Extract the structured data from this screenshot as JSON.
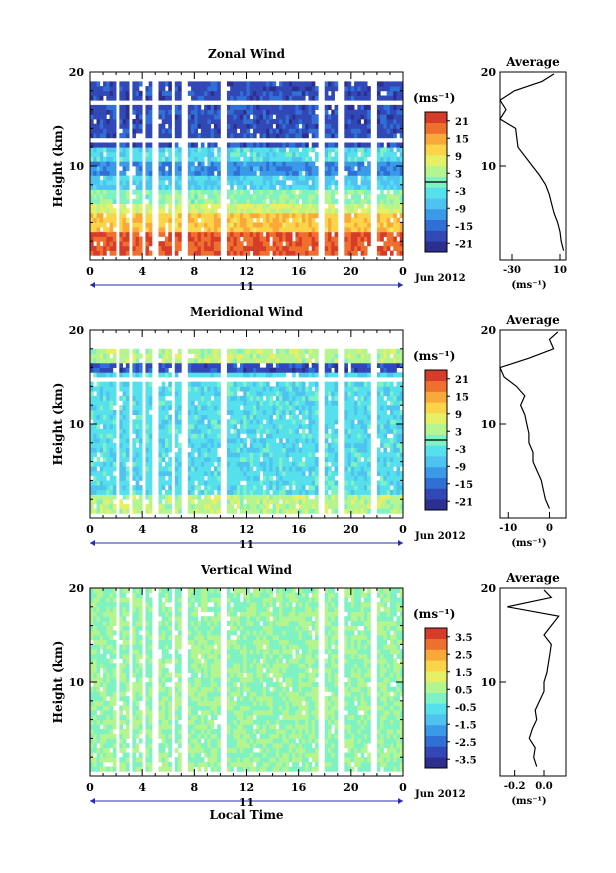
{
  "chart_data": [
    {
      "type": "heatmap",
      "title": "Zonal Wind",
      "ylabel": "Height (km)",
      "xlabel": "",
      "xlim": [
        0,
        24
      ],
      "ylim": [
        0,
        20
      ],
      "xticks": [
        "0",
        "4",
        "8",
        "12",
        "16",
        "20",
        "0"
      ],
      "yticks": [
        "10",
        "20"
      ],
      "date_day": "11",
      "date_label": "Jun 2012",
      "colorbar": {
        "unit_label": "(ms⁻¹)",
        "ticks": [
          "21",
          "15",
          "9",
          "3",
          "-3",
          "-9",
          "-15",
          "-21"
        ],
        "range": [
          -24,
          24
        ],
        "marker_value": 0
      },
      "data_gaps_hours": [
        [
          1.9,
          2.3
        ],
        [
          3.0,
          3.3
        ],
        [
          3.9,
          4.3
        ],
        [
          4.8,
          5.2
        ],
        [
          6.2,
          6.6
        ],
        [
          7.0,
          7.5
        ],
        [
          10.0,
          10.6
        ],
        [
          17.6,
          17.9
        ],
        [
          19.0,
          19.6
        ],
        [
          21.6,
          22.1
        ]
      ],
      "mean_profile": {
        "title": "Average",
        "xlabel": "(ms⁻¹)",
        "xticks": [
          "-30",
          "10"
        ],
        "xlim": [
          -40,
          15
        ],
        "yticks": [
          "10",
          "20"
        ],
        "height_km": [
          1,
          2,
          3,
          4,
          5,
          6,
          7,
          8,
          9,
          10,
          11,
          12,
          13,
          14,
          15,
          16,
          17,
          18,
          19,
          19.8
        ],
        "values": [
          13,
          11,
          10,
          8,
          5,
          3,
          1,
          -2,
          -7,
          -13,
          -19,
          -25,
          -26,
          -27,
          -40,
          -35,
          -40,
          -28,
          -5,
          5
        ]
      }
    },
    {
      "type": "heatmap",
      "title": "Meridional Wind",
      "ylabel": "Height (km)",
      "xlabel": "",
      "xlim": [
        0,
        24
      ],
      "ylim": [
        0,
        20
      ],
      "xticks": [
        "0",
        "4",
        "8",
        "12",
        "16",
        "20",
        "0"
      ],
      "yticks": [
        "10",
        "20"
      ],
      "date_day": "11",
      "date_label": "Jun 2012",
      "colorbar": {
        "unit_label": "(ms⁻¹)",
        "ticks": [
          "21",
          "15",
          "9",
          "3",
          "-3",
          "-9",
          "-15",
          "-21"
        ],
        "range": [
          -24,
          24
        ],
        "marker_value": 0
      },
      "data_gaps_hours": [
        [
          1.9,
          2.3
        ],
        [
          3.0,
          3.3
        ],
        [
          3.9,
          4.3
        ],
        [
          4.8,
          5.2
        ],
        [
          6.2,
          6.6
        ],
        [
          7.0,
          7.5
        ],
        [
          10.0,
          10.6
        ],
        [
          17.6,
          17.9
        ],
        [
          19.0,
          19.6
        ],
        [
          21.6,
          22.1
        ]
      ],
      "mean_profile": {
        "title": "Average",
        "xlabel": "(ms⁻¹)",
        "xticks": [
          "-10",
          "0"
        ],
        "xlim": [
          -12,
          4
        ],
        "yticks": [
          "10",
          "20"
        ],
        "height_km": [
          1,
          2,
          3,
          4,
          5,
          6,
          7,
          8,
          9,
          10,
          11,
          12,
          13,
          14,
          15,
          16,
          17,
          18,
          19,
          19.8
        ],
        "values": [
          0,
          -1,
          -1.5,
          -2,
          -3,
          -4,
          -4,
          -5,
          -5,
          -5.5,
          -6,
          -7,
          -6,
          -8,
          -11,
          -12,
          -5,
          1,
          0,
          2
        ]
      }
    },
    {
      "type": "heatmap",
      "title": "Vertical Wind",
      "ylabel": "Height (km)",
      "xlabel": "Local Time",
      "xlim": [
        0,
        24
      ],
      "ylim": [
        0,
        20
      ],
      "xticks": [
        "0",
        "4",
        "8",
        "12",
        "16",
        "20",
        "0"
      ],
      "yticks": [
        "10",
        "20"
      ],
      "date_day": "11",
      "date_label": "Jun 2012",
      "colorbar": {
        "unit_label": "(ms⁻¹)",
        "ticks": [
          "3.5",
          "2.5",
          "1.5",
          "0.5",
          "-0.5",
          "-1.5",
          "-2.5",
          "-3.5"
        ],
        "range": [
          -4,
          4
        ],
        "marker_value": null
      },
      "data_gaps_hours": [
        [
          1.9,
          2.3
        ],
        [
          3.0,
          3.3
        ],
        [
          3.9,
          4.3
        ],
        [
          4.8,
          5.2
        ],
        [
          6.2,
          6.6
        ],
        [
          7.0,
          7.5
        ],
        [
          10.0,
          10.6
        ],
        [
          17.6,
          17.9
        ],
        [
          19.0,
          19.6
        ],
        [
          21.6,
          22.1
        ]
      ],
      "mean_profile": {
        "title": "Average",
        "xlabel": "(ms⁻¹)",
        "xticks": [
          "-0.2",
          "0.0"
        ],
        "xlim": [
          -0.3,
          0.15
        ],
        "yticks": [
          "10",
          "20"
        ],
        "height_km": [
          1,
          2,
          3,
          4,
          5,
          6,
          7,
          8,
          9,
          10,
          11,
          12,
          13,
          14,
          15,
          16,
          17,
          18,
          19,
          19.8
        ],
        "values": [
          -0.05,
          -0.07,
          -0.06,
          -0.1,
          -0.08,
          -0.05,
          -0.06,
          -0.03,
          0.0,
          0.0,
          0.02,
          0.03,
          0.04,
          0.05,
          0.0,
          0.05,
          0.1,
          -0.25,
          0.05,
          0.0
        ]
      }
    }
  ]
}
